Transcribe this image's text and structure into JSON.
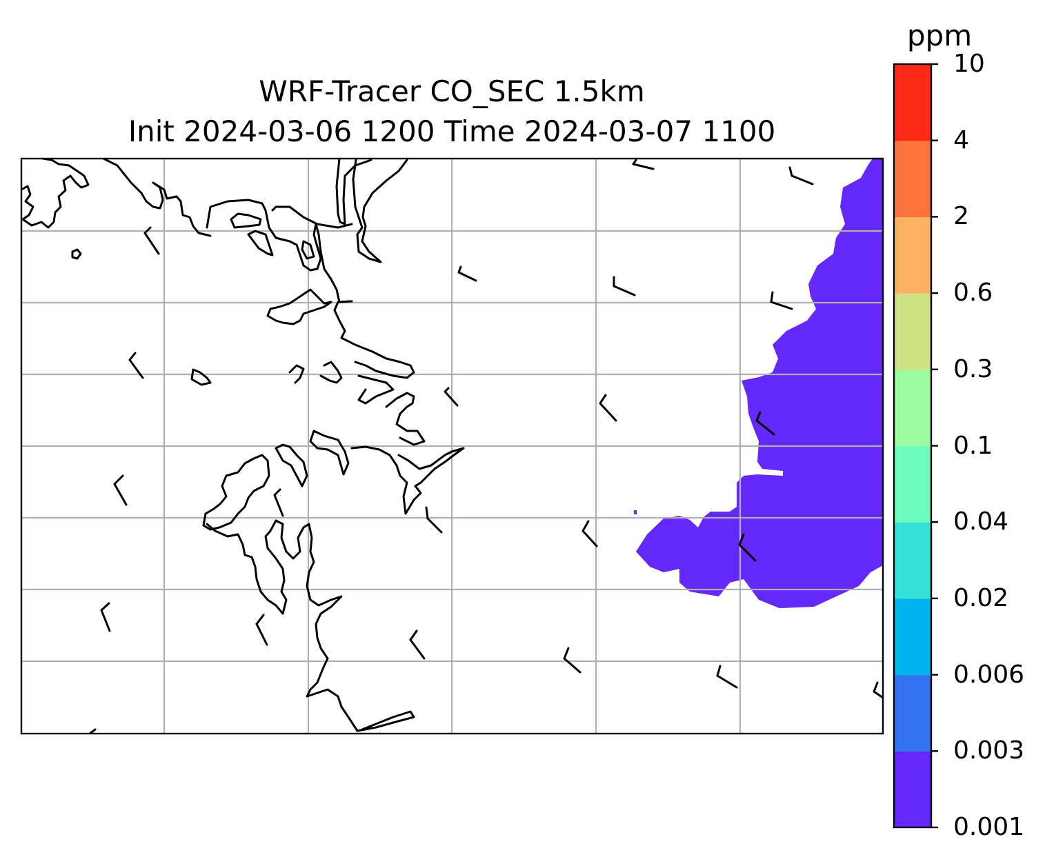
{
  "title": "WRF-Tracer CO_SEC 1.5km",
  "subtitle": "Init 2024-03-06 1200 Time 2024-03-07 1100",
  "colorbar": {
    "unit": "ppm",
    "levels": [
      "0.001",
      "0.003",
      "0.006",
      "0.02",
      "0.04",
      "0.1",
      "0.3",
      "0.6",
      "2",
      "4",
      "10"
    ],
    "colors": [
      "#6428fa",
      "#3373f2",
      "#00b4ef",
      "#33e1d6",
      "#6bfcbe",
      "#9bfc9f",
      "#d0e284",
      "#fdb262",
      "#fd733e",
      "#fc2a15"
    ]
  },
  "map": {
    "gridlines": true,
    "plume_color": "#6428fa",
    "coastline_color": "#000000"
  }
}
